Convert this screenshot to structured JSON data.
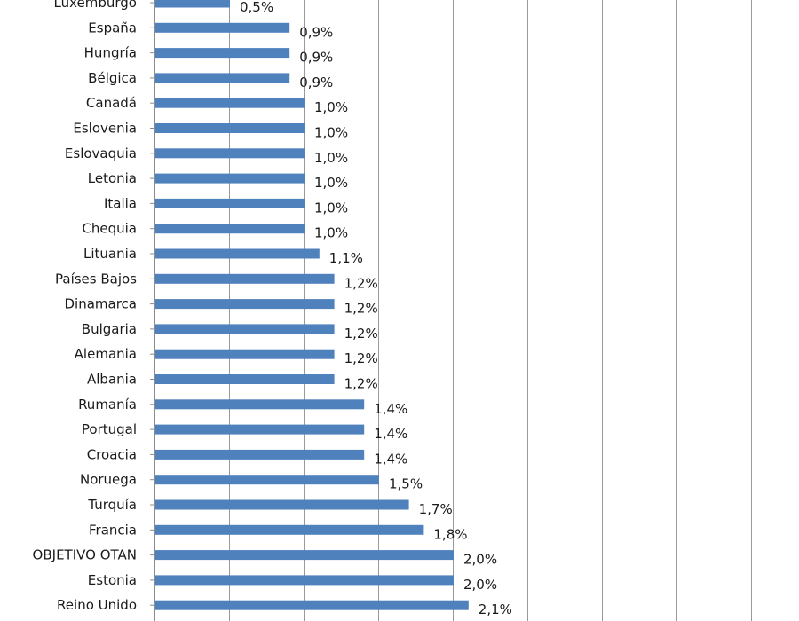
{
  "chart_data": {
    "type": "bar",
    "orientation": "horizontal",
    "grid": true,
    "bar_color": "#4f81bd",
    "xlim": [
      0,
      4.2
    ],
    "categories": [
      "Luxemburgo",
      "España",
      "Hungría",
      "Bélgica",
      "Canadá",
      "Eslovenia",
      "Eslovaquia",
      "Letonia",
      "Italia",
      "Chequia",
      "Lituania",
      "Países Bajos",
      "Dinamarca",
      "Bulgaria",
      "Alemania",
      "Albania",
      "Rumanía",
      "Portugal",
      "Croacia",
      "Noruega",
      "Turquía",
      "Francia",
      "OBJETIVO OTAN",
      "Estonia",
      "Reino Unido"
    ],
    "values": [
      0.5,
      0.9,
      0.9,
      0.9,
      1.0,
      1.0,
      1.0,
      1.0,
      1.0,
      1.0,
      1.1,
      1.2,
      1.2,
      1.2,
      1.2,
      1.2,
      1.4,
      1.4,
      1.4,
      1.5,
      1.7,
      1.8,
      2.0,
      2.0,
      2.1
    ],
    "value_labels": [
      "0,5%",
      "0,9%",
      "0,9%",
      "0,9%",
      "1,0%",
      "1,0%",
      "1,0%",
      "1,0%",
      "1,0%",
      "1,0%",
      "1,1%",
      "1,2%",
      "1,2%",
      "1,2%",
      "1,2%",
      "1,2%",
      "1,4%",
      "1,4%",
      "1,4%",
      "1,5%",
      "1,7%",
      "1,8%",
      "2,0%",
      "2,0%",
      "2,1%"
    ]
  }
}
